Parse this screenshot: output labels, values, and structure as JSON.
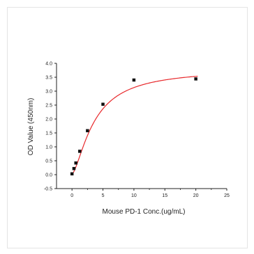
{
  "chart_data": {
    "type": "scatter",
    "title": "",
    "xlabel": "Mouse PD-1 Conc.(ug/mL)",
    "ylabel": "OD Value (450nm)",
    "xlim": [
      -2.5,
      25
    ],
    "ylim": [
      -0.5,
      4.0
    ],
    "xticks": [
      "0",
      "5",
      "10",
      "15",
      "20",
      "25"
    ],
    "yticks": [
      "-0.5",
      "0.0",
      "0.5",
      "1.0",
      "1.5",
      "2.0",
      "2.5",
      "3.0",
      "3.5",
      "4.0"
    ],
    "grid": false,
    "legend": "none",
    "points": {
      "x": [
        0.0,
        0.3125,
        0.625,
        1.25,
        2.5,
        5,
        10,
        20
      ],
      "y": [
        0.03,
        0.22,
        0.42,
        0.84,
        1.58,
        2.53,
        3.4,
        3.44
      ],
      "marker": "square",
      "color": "#111111"
    },
    "fit_curve": {
      "type": "four-parameter logistic",
      "color": "#e8282b",
      "params": {
        "A": 0.02,
        "D": 3.8,
        "C": 3.6,
        "B": 1.5
      }
    }
  }
}
